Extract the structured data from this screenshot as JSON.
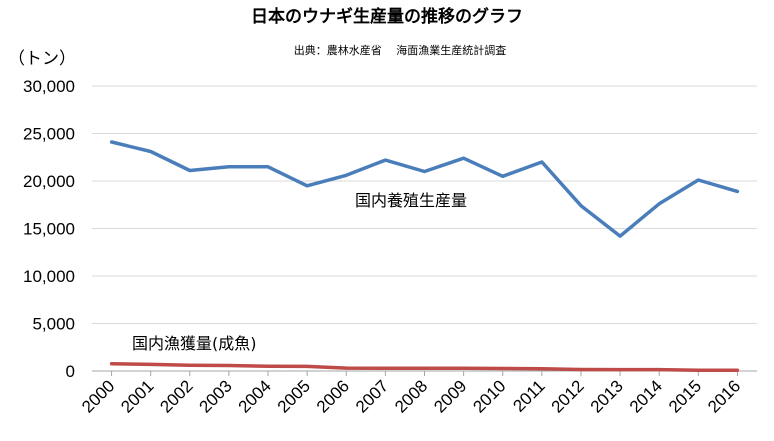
{
  "chart_data": {
    "type": "line",
    "title": "日本のウナギ生産量の推移のグラフ",
    "subtitle": "出典：農林水産省　 海面漁業生産統計調査",
    "ylabel": "（トン）",
    "ylim": [
      0,
      30000
    ],
    "yticks": [
      "0",
      "5,000",
      "10,000",
      "15,000",
      "20,000",
      "25,000",
      "30,000"
    ],
    "ytick_values": [
      0,
      5000,
      10000,
      15000,
      20000,
      25000,
      30000
    ],
    "grid": true,
    "x": [
      "2000",
      "2001",
      "2002",
      "2003",
      "2004",
      "2005",
      "2006",
      "2007",
      "2008",
      "2009",
      "2010",
      "2011",
      "2012",
      "2013",
      "2014",
      "2015",
      "2016"
    ],
    "series": [
      {
        "name": "国内養殖生産量",
        "color": "#4a7ebb",
        "values": [
          24100,
          23100,
          21100,
          21500,
          21500,
          19500,
          20600,
          22200,
          21000,
          22400,
          20500,
          22000,
          17400,
          14200,
          17600,
          20100,
          18900
        ]
      },
      {
        "name": "国内漁獲量(成魚)",
        "color": "#be4b48",
        "values": [
          770,
          690,
          600,
          580,
          510,
          480,
          300,
          290,
          280,
          280,
          260,
          240,
          160,
          150,
          150,
          70,
          70
        ]
      }
    ]
  }
}
